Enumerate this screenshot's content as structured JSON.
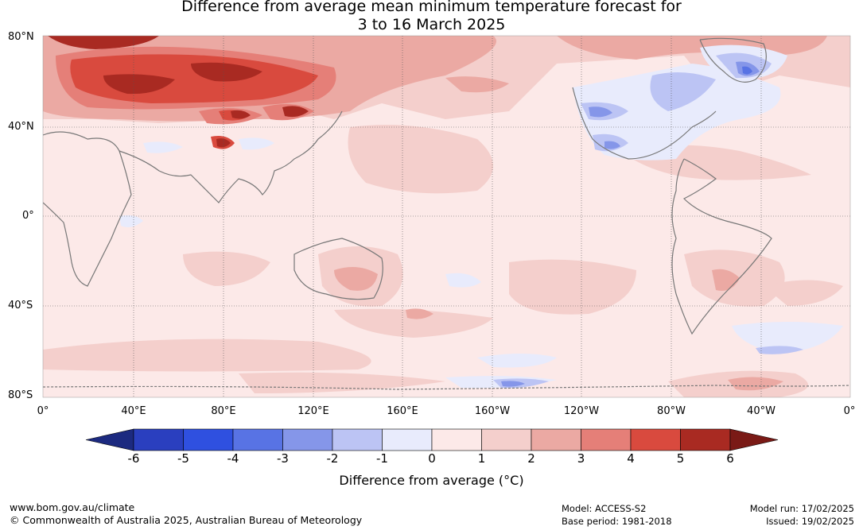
{
  "title": {
    "line1": "Difference from average mean minimum temperature forecast for",
    "line2": "3 to 16 March 2025"
  },
  "map": {
    "lat_labels": [
      "80°N",
      "40°N",
      "0°",
      "40°S",
      "80°S"
    ],
    "lon_labels": [
      "0°",
      "40°E",
      "80°E",
      "120°E",
      "160°E",
      "160°W",
      "120°W",
      "80°W",
      "40°W",
      "0°"
    ],
    "anomaly_regions": [
      {
        "region": "Siberia / northern Russia",
        "anomaly_c": "4 to 6"
      },
      {
        "region": "Central Asia / Mongolia",
        "anomaly_c": "4 to 5"
      },
      {
        "region": "Tibet",
        "anomaly_c": "5 to 6"
      },
      {
        "region": "Canada / central USA",
        "anomaly_c": "-3 to -1"
      },
      {
        "region": "Greenland",
        "anomaly_c": "-4 to -1"
      },
      {
        "region": "Central Australia",
        "anomaly_c": "2 to 3"
      },
      {
        "region": "Southern Ocean near 60°S 170°W",
        "anomaly_c": "-4 to -1"
      }
    ]
  },
  "colorbar": {
    "ticks": [
      "-6",
      "-5",
      "-4",
      "-3",
      "-2",
      "-1",
      "0",
      "1",
      "2",
      "3",
      "4",
      "5",
      "6"
    ],
    "colors": [
      "#1c2a80",
      "#2a3fbf",
      "#2f50e0",
      "#5873e4",
      "#8596e9",
      "#bcc4f4",
      "#e8ebfc",
      "#fce9e8",
      "#f4cfcc",
      "#eba9a3",
      "#e57f78",
      "#d94a3e",
      "#a92a22",
      "#7a1a16"
    ],
    "label": "Difference from average (°C)"
  },
  "footer": {
    "url": "www.bom.gov.au/climate",
    "copyright": "© Commonwealth of Australia 2025, Australian Bureau of Meteorology",
    "model": "Model: ACCESS-S2",
    "base_period": "Base period: 1981-2018",
    "model_run": "Model run: 17/02/2025",
    "issued": "Issued: 19/02/2025"
  }
}
